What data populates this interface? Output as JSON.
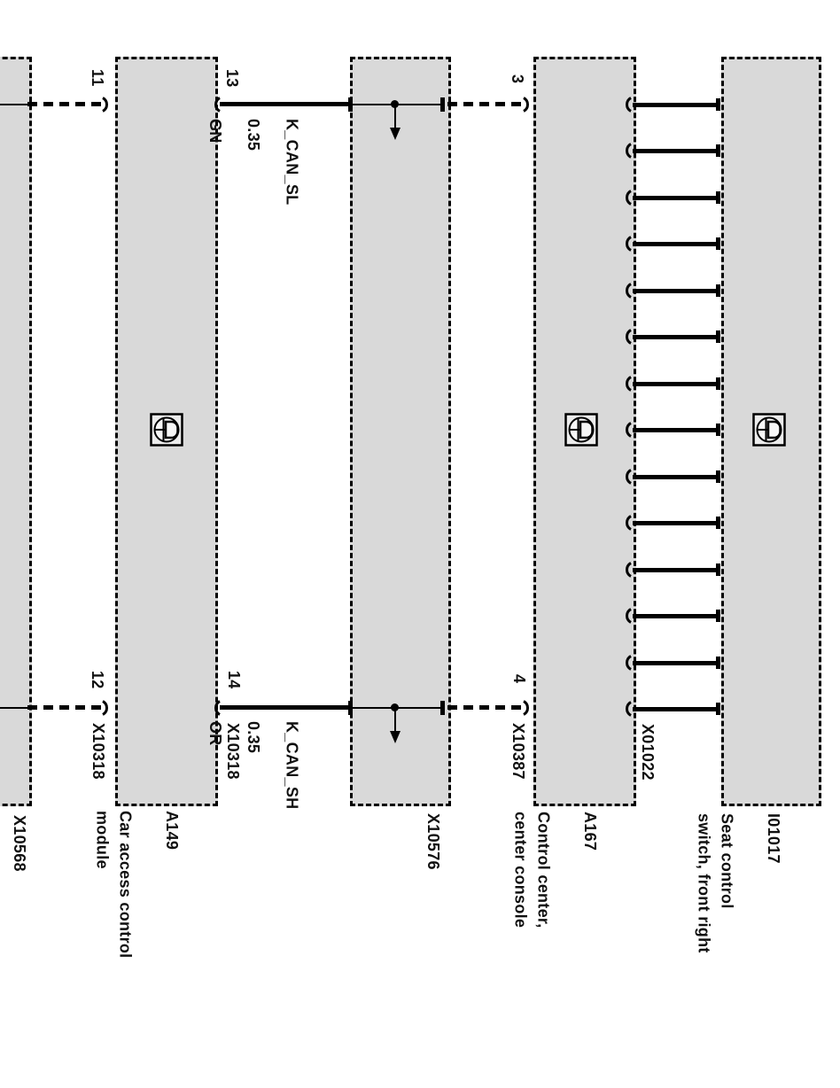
{
  "colors": {
    "background": "#ffffff",
    "box_fill": "#d9d9d9",
    "line": "#000000"
  },
  "icons": {
    "component_symbol": "component-location-icon",
    "junction_arrow": "down-arrow-icon",
    "pin_socket": "pin-socket-icon"
  },
  "bus": {
    "count": 14
  },
  "wires": {
    "top": {
      "name": "K_CAN_SL",
      "gauge": "0.35",
      "color_code": "GN"
    },
    "bottom": {
      "name": "K_CAN_SH",
      "gauge": "0.35",
      "color_code": "OR"
    }
  },
  "pins": {
    "p11": "11",
    "p12": "12",
    "p13": "13",
    "p14": "14",
    "p3": "3",
    "p4": "4"
  },
  "connectors": {
    "x10568": "X10568",
    "x10318_top": "X10318",
    "x10318_bottom": "X10318",
    "x10576": "X10576",
    "x10387": "X10387",
    "x01022": "X01022"
  },
  "components": {
    "a149": {
      "code": "A149",
      "name": "Car access control\nmodule"
    },
    "a167": {
      "code": "A167",
      "name": "Control center,\ncenter console"
    },
    "i01017": {
      "code": "I01017",
      "name": "Seat control\nswitch, front right"
    }
  }
}
